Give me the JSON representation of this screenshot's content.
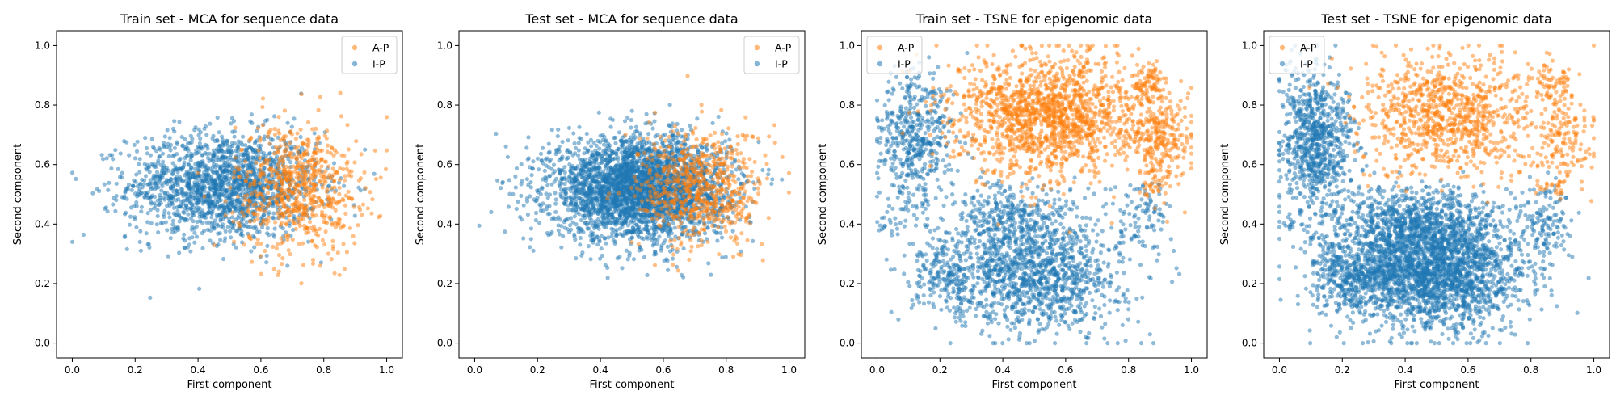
{
  "colors": {
    "A-P": "#ff7f0e",
    "I-P": "#1f77b4"
  },
  "chart_data": [
    {
      "type": "scatter",
      "title": "Train set - MCA for sequence data",
      "xlabel": "First component",
      "ylabel": "Second component",
      "xlim": [
        -0.05,
        1.05
      ],
      "ylim": [
        -0.05,
        1.05
      ],
      "xticks": [
        "0.0",
        "0.2",
        "0.4",
        "0.6",
        "0.8",
        "1.0"
      ],
      "yticks": [
        "0.0",
        "0.2",
        "0.4",
        "0.6",
        "0.8",
        "1.0"
      ],
      "legend": {
        "placement": "upper right",
        "entries": [
          "A-P",
          "I-P"
        ]
      },
      "series": [
        {
          "name": "I-P",
          "clusters": [
            {
              "cx": 0.48,
              "cy": 0.53,
              "sx": 0.15,
              "sy": 0.09,
              "n": 1700
            }
          ]
        },
        {
          "name": "A-P",
          "clusters": [
            {
              "cx": 0.72,
              "cy": 0.52,
              "sx": 0.1,
              "sy": 0.11,
              "n": 700
            }
          ]
        }
      ]
    },
    {
      "type": "scatter",
      "title": "Test set - MCA for sequence data",
      "xlabel": "First component",
      "ylabel": "Second component",
      "xlim": [
        -0.05,
        1.05
      ],
      "ylim": [
        -0.05,
        1.05
      ],
      "xticks": [
        "0.0",
        "0.2",
        "0.4",
        "0.6",
        "0.8",
        "1.0"
      ],
      "yticks": [
        "0.0",
        "0.2",
        "0.4",
        "0.6",
        "0.8",
        "1.0"
      ],
      "legend": {
        "placement": "upper right",
        "entries": [
          "A-P",
          "I-P"
        ]
      },
      "series": [
        {
          "name": "I-P",
          "clusters": [
            {
              "cx": 0.52,
              "cy": 0.52,
              "sx": 0.14,
              "sy": 0.085,
              "n": 3200
            }
          ]
        },
        {
          "name": "A-P",
          "clusters": [
            {
              "cx": 0.72,
              "cy": 0.52,
              "sx": 0.1,
              "sy": 0.1,
              "n": 650
            }
          ]
        }
      ]
    },
    {
      "type": "scatter",
      "title": "Train set - TSNE for epigenomic data",
      "xlabel": "First component",
      "ylabel": "Second component",
      "xlim": [
        -0.05,
        1.05
      ],
      "ylim": [
        -0.05,
        1.05
      ],
      "xticks": [
        "0.0",
        "0.2",
        "0.4",
        "0.6",
        "0.8",
        "1.0"
      ],
      "yticks": [
        "0.0",
        "0.2",
        "0.4",
        "0.6",
        "0.8",
        "1.0"
      ],
      "legend": {
        "placement": "upper left",
        "entries": [
          "A-P",
          "I-P"
        ]
      },
      "series": [
        {
          "name": "I-P",
          "clusters": [
            {
              "cx": 0.5,
              "cy": 0.24,
              "sx": 0.14,
              "sy": 0.1,
              "n": 1300
            },
            {
              "cx": 0.12,
              "cy": 0.68,
              "sx": 0.06,
              "sy": 0.12,
              "n": 500
            },
            {
              "cx": 0.42,
              "cy": 0.43,
              "sx": 0.1,
              "sy": 0.05,
              "n": 250
            },
            {
              "cx": 0.22,
              "cy": 0.22,
              "sx": 0.06,
              "sy": 0.06,
              "n": 180
            },
            {
              "cx": 0.85,
              "cy": 0.42,
              "sx": 0.04,
              "sy": 0.06,
              "n": 90
            },
            {
              "cx": 0.03,
              "cy": 0.4,
              "sx": 0.015,
              "sy": 0.015,
              "n": 15
            }
          ]
        },
        {
          "name": "A-P",
          "clusters": [
            {
              "cx": 0.55,
              "cy": 0.77,
              "sx": 0.15,
              "sy": 0.1,
              "n": 1500
            },
            {
              "cx": 0.9,
              "cy": 0.68,
              "sx": 0.05,
              "sy": 0.08,
              "n": 250
            },
            {
              "cx": 0.87,
              "cy": 0.88,
              "sx": 0.03,
              "sy": 0.03,
              "n": 80
            },
            {
              "cx": 0.88,
              "cy": 0.52,
              "sx": 0.02,
              "sy": 0.02,
              "n": 25
            }
          ]
        }
      ]
    },
    {
      "type": "scatter",
      "title": "Test set - TSNE for epigenomic data",
      "xlabel": "First component",
      "ylabel": "Second component",
      "xlim": [
        -0.05,
        1.05
      ],
      "ylim": [
        -0.05,
        1.05
      ],
      "xticks": [
        "0.0",
        "0.2",
        "0.4",
        "0.6",
        "0.8",
        "1.0"
      ],
      "yticks": [
        "0.0",
        "0.2",
        "0.4",
        "0.6",
        "0.8",
        "1.0"
      ],
      "legend": {
        "placement": "upper left",
        "entries": [
          "A-P",
          "I-P"
        ]
      },
      "series": [
        {
          "name": "I-P",
          "clusters": [
            {
              "cx": 0.48,
              "cy": 0.25,
              "sx": 0.15,
              "sy": 0.1,
              "n": 2600
            },
            {
              "cx": 0.12,
              "cy": 0.68,
              "sx": 0.06,
              "sy": 0.12,
              "n": 800
            },
            {
              "cx": 0.42,
              "cy": 0.42,
              "sx": 0.12,
              "sy": 0.05,
              "n": 500
            },
            {
              "cx": 0.22,
              "cy": 0.22,
              "sx": 0.06,
              "sy": 0.06,
              "n": 300
            },
            {
              "cx": 0.85,
              "cy": 0.42,
              "sx": 0.04,
              "sy": 0.06,
              "n": 120
            },
            {
              "cx": 0.03,
              "cy": 0.4,
              "sx": 0.015,
              "sy": 0.015,
              "n": 15
            }
          ]
        },
        {
          "name": "A-P",
          "clusters": [
            {
              "cx": 0.55,
              "cy": 0.77,
              "sx": 0.15,
              "sy": 0.1,
              "n": 900
            },
            {
              "cx": 0.9,
              "cy": 0.68,
              "sx": 0.05,
              "sy": 0.08,
              "n": 150
            },
            {
              "cx": 0.87,
              "cy": 0.88,
              "sx": 0.03,
              "sy": 0.03,
              "n": 50
            },
            {
              "cx": 0.88,
              "cy": 0.52,
              "sx": 0.02,
              "sy": 0.02,
              "n": 20
            }
          ]
        }
      ]
    }
  ]
}
